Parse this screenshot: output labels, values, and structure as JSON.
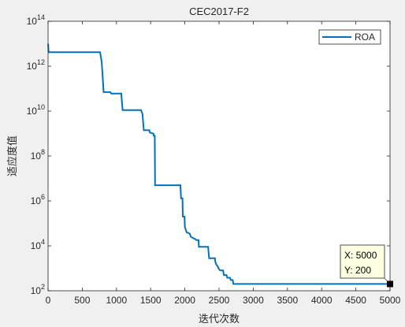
{
  "chart_data": {
    "type": "line",
    "title": "CEC2017-F2",
    "xlabel": "迭代次数",
    "ylabel": "适应度值",
    "xlim": [
      0,
      5000
    ],
    "ylim": [
      100,
      100000000000000
    ],
    "yscale": "log",
    "grid": false,
    "legend_position": "top-right",
    "x_ticks": [
      "0",
      "500",
      "1000",
      "1500",
      "2000",
      "2500",
      "3000",
      "3500",
      "4000",
      "4500",
      "5000"
    ],
    "y_ticks": [
      {
        "base": "10",
        "exp": "2"
      },
      {
        "base": "10",
        "exp": "4"
      },
      {
        "base": "10",
        "exp": "6"
      },
      {
        "base": "10",
        "exp": "8"
      },
      {
        "base": "10",
        "exp": "10"
      },
      {
        "base": "10",
        "exp": "12"
      },
      {
        "base": "10",
        "exp": "14"
      }
    ],
    "series": [
      {
        "name": "ROA",
        "color": "#0072bd",
        "points": [
          [
            1,
            10000000000000
          ],
          [
            5,
            6000000000000
          ],
          [
            10,
            4200000000000
          ],
          [
            760,
            4200000000000
          ],
          [
            785,
            1500000000000
          ],
          [
            800,
            300000000000
          ],
          [
            812,
            70000000000
          ],
          [
            910,
            70000000000
          ],
          [
            925,
            60000000000
          ],
          [
            1070,
            60000000000
          ],
          [
            1090,
            11000000000
          ],
          [
            1360,
            11000000000
          ],
          [
            1380,
            7500000000
          ],
          [
            1400,
            1400000000
          ],
          [
            1480,
            1400000000
          ],
          [
            1490,
            1100000000
          ],
          [
            1540,
            1000000000
          ],
          [
            1545,
            800000000
          ],
          [
            1560,
            800000000
          ],
          [
            1565,
            5000000
          ],
          [
            1935,
            5000000
          ],
          [
            1945,
            1300000
          ],
          [
            1965,
            1300000
          ],
          [
            1970,
            200000
          ],
          [
            1995,
            200000
          ],
          [
            2000,
            70000
          ],
          [
            2025,
            40000
          ],
          [
            2070,
            35000
          ],
          [
            2090,
            25000
          ],
          [
            2150,
            20000
          ],
          [
            2170,
            18000
          ],
          [
            2200,
            18000
          ],
          [
            2205,
            9000
          ],
          [
            2340,
            9000
          ],
          [
            2355,
            2800
          ],
          [
            2440,
            2800
          ],
          [
            2445,
            2000
          ],
          [
            2460,
            1500
          ],
          [
            2480,
            1200
          ],
          [
            2500,
            900
          ],
          [
            2520,
            800
          ],
          [
            2560,
            800
          ],
          [
            2570,
            500
          ],
          [
            2610,
            500
          ],
          [
            2620,
            380
          ],
          [
            2660,
            380
          ],
          [
            2670,
            300
          ],
          [
            2700,
            300
          ],
          [
            2710,
            200
          ],
          [
            5000,
            200
          ]
        ]
      }
    ],
    "annotation": {
      "x_label": "X: 5000",
      "y_label": "Y: 200",
      "x": 5000,
      "y": 200
    }
  }
}
